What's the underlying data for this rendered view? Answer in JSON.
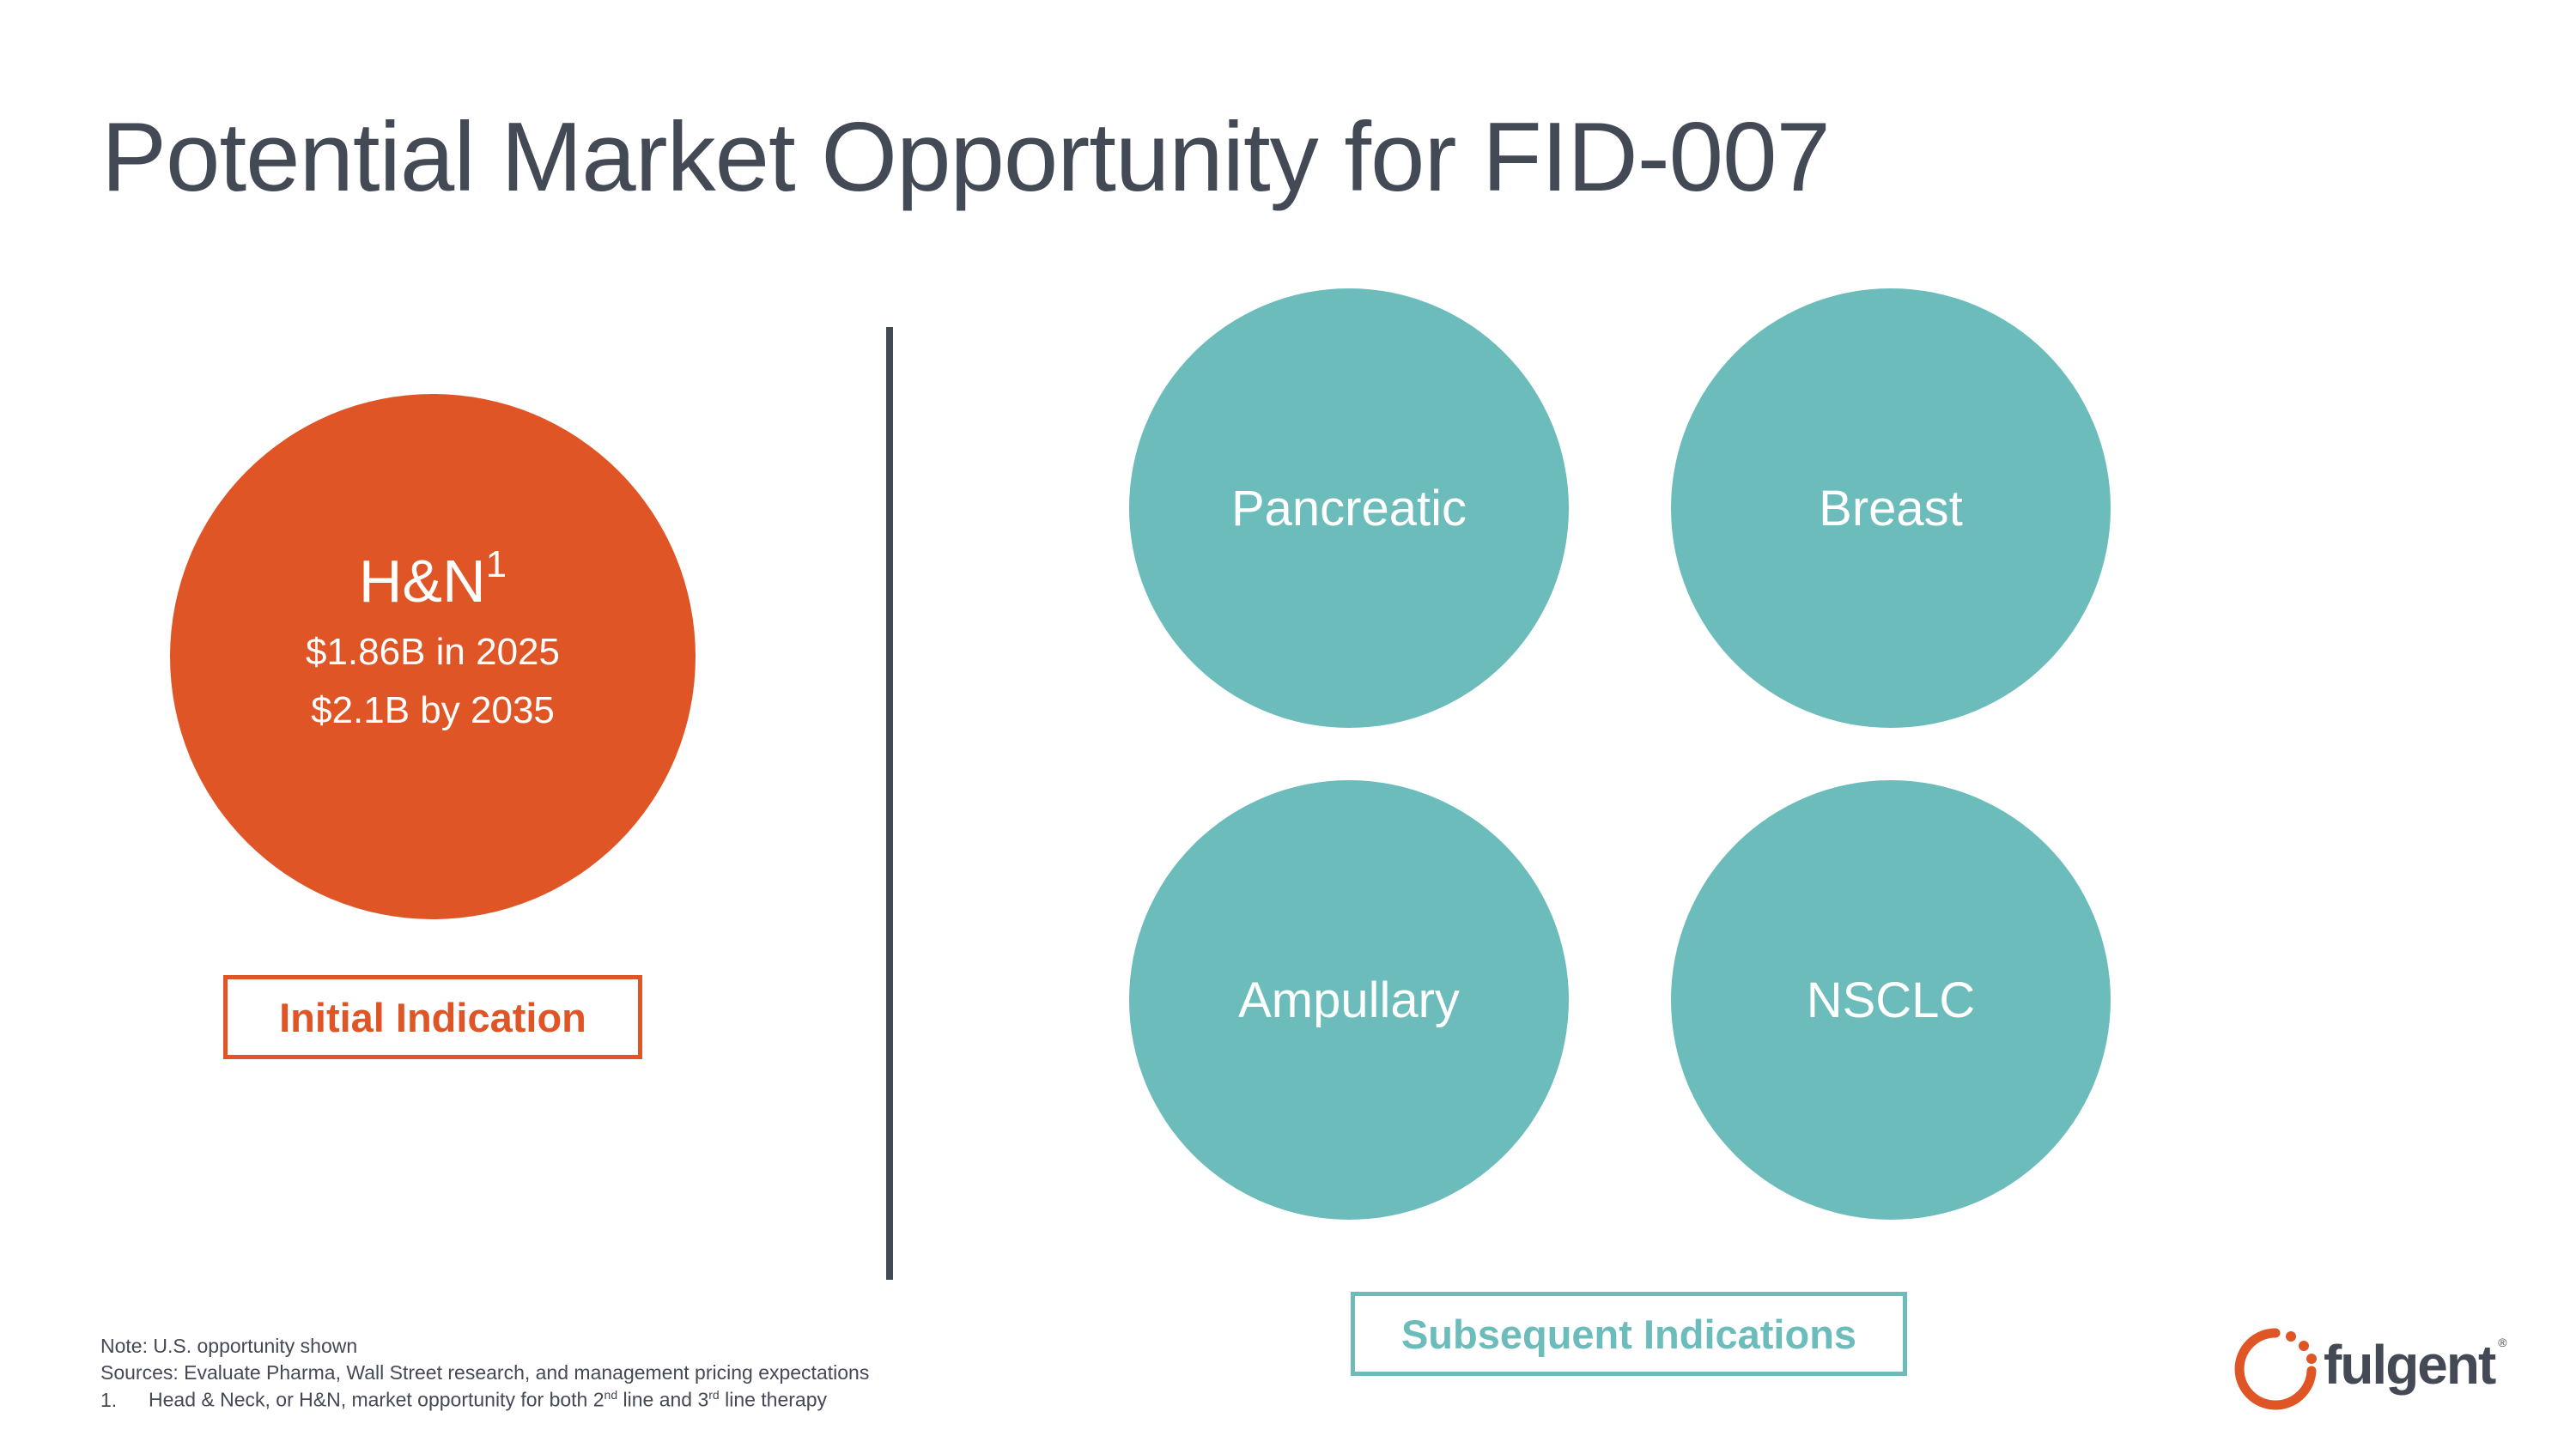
{
  "title": "Potential Market Opportunity for FID-007",
  "initial": {
    "name": "H&N",
    "footnote_marker": "1",
    "value_2025": "$1.86B in 2025",
    "value_2035": "$2.1B by 2035",
    "label": "Initial Indication",
    "color": "#E05525"
  },
  "subsequent": {
    "items": [
      "Pancreatic",
      "Breast",
      "Ampullary",
      "NSCLC"
    ],
    "label": "Subsequent Indications",
    "color": "#6BBCBA"
  },
  "notes": {
    "note": "Note: U.S. opportunity shown",
    "sources": "Sources: Evaluate Pharma, Wall Street research, and management pricing expectations",
    "fn_number": "1.",
    "fn_text_a": "Head & Neck, or H&N, market opportunity for both 2",
    "fn_sup_a": "nd",
    "fn_text_b": " line and 3",
    "fn_sup_b": "rd",
    "fn_text_c": " line therapy"
  },
  "logo": {
    "text": "fulgent",
    "mark": "®"
  }
}
